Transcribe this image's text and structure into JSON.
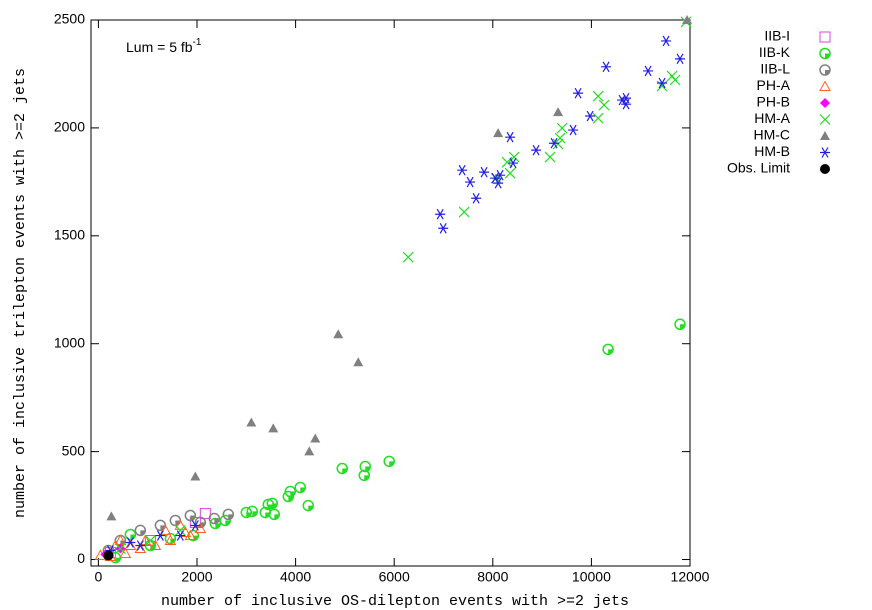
{
  "chart_data": {
    "type": "scatter",
    "annotation": "Lum = 5 fb",
    "annotation_superscript": "-1",
    "x_label": "number of inclusive OS-dilepton events with >=2 jets",
    "y_label": "number of inclusive trilepton events with >=2 jets",
    "xlim": [
      -150,
      12000
    ],
    "ylim": [
      -30,
      2500
    ],
    "xticks": [
      0,
      2000,
      4000,
      6000,
      8000,
      10000,
      12000
    ],
    "yticks": [
      0,
      500,
      1000,
      1500,
      2000,
      2500
    ],
    "grid": false,
    "legend": "outside-right-top",
    "series": [
      {
        "name": "IIB-I",
        "color": "#e040e0",
        "marker": "open-square",
        "x": [
          2169,
          1966,
          1054,
          243
        ],
        "y": [
          213,
          172,
          88,
          32
        ]
      },
      {
        "name": "IIB-K",
        "color": "#22dd22",
        "marker": "dotted-circle",
        "x": [
          11798,
          10339,
          5899,
          5413,
          5392,
          4946,
          4095,
          3892,
          3852,
          4257,
          3527,
          3446,
          3385,
          3568,
          3122,
          3000,
          2372,
          2575,
          1926,
          1460,
          649,
          1054,
          345
        ],
        "y": [
          1090,
          974,
          455,
          431,
          390,
          422,
          334,
          315,
          292,
          250,
          260,
          255,
          218,
          209,
          223,
          218,
          167,
          181,
          111,
          97,
          116,
          65,
          9
        ]
      },
      {
        "name": "IIB-L",
        "color": "#808080",
        "marker": "dotted-circle",
        "x": [
          2635,
          2351,
          1865,
          1561,
          1257,
          851,
          446,
          203,
          2068
        ],
        "y": [
          209,
          190,
          204,
          181,
          158,
          135,
          88,
          42,
          172
        ]
      },
      {
        "name": "PH-A",
        "color": "#ff6020",
        "marker": "open-triangle",
        "x": [
          2068,
          1764,
          1460,
          1155,
          851,
          547,
          243,
          1358,
          953,
          649,
          446,
          345,
          41,
          1662,
          1865
        ],
        "y": [
          144,
          125,
          88,
          65,
          51,
          28,
          14,
          135,
          88,
          65,
          88,
          65,
          19,
          158,
          111
        ]
      },
      {
        "name": "PH-B",
        "color": "#ff00ff",
        "marker": "filled-diamond",
        "x": [
          142,
          446
        ],
        "y": [
          23,
          51
        ]
      },
      {
        "name": "HM-A",
        "color": "#22dd22",
        "marker": "cross",
        "x": [
          11920,
          11636,
          11697,
          11433,
          10136,
          10258,
          10136,
          9406,
          9365,
          9324,
          9162,
          8433,
          8290,
          8351,
          8067,
          7419,
          6284,
          1054,
          446,
          1662
        ],
        "y": [
          2491,
          2240,
          2222,
          2194,
          2147,
          2106,
          2045,
          1999,
          1953,
          1925,
          1865,
          1865,
          1841,
          1790,
          1767,
          1610,
          1401,
          88,
          51,
          135
        ]
      },
      {
        "name": "HM-C",
        "color": "#808080",
        "marker": "filled-triangle",
        "x": [
          11940,
          8108,
          9324,
          4865,
          5271,
          3102,
          3547,
          4399,
          4277,
          1966,
          264
        ],
        "y": [
          2500,
          1976,
          2073,
          1044,
          914,
          635,
          608,
          561,
          501,
          385,
          200
        ]
      },
      {
        "name": "HM-B",
        "color": "#2020e0",
        "marker": "asterisk",
        "x": [
          11515,
          11798,
          10298,
          11150,
          11434,
          10703,
          10622,
          10703,
          9730,
          9974,
          9629,
          9243,
          8878,
          8351,
          8411,
          8148,
          8047,
          8108,
          7824,
          7378,
          7540,
          7662,
          6933,
          6994,
          1966,
          1257,
          649,
          243,
          851,
          1662
        ],
        "y": [
          2403,
          2320,
          2283,
          2264,
          2208,
          2138,
          2129,
          2110,
          2161,
          2055,
          1990,
          1929,
          1897,
          1957,
          1837,
          1781,
          1767,
          1744,
          1795,
          1804,
          1749,
          1674,
          1600,
          1535,
          158,
          111,
          79,
          42,
          65,
          111
        ]
      },
      {
        "name": "Obs. Limit",
        "color": "#000000",
        "marker": "filled-circle",
        "x": [
          203
        ],
        "y": [
          19
        ]
      }
    ]
  }
}
